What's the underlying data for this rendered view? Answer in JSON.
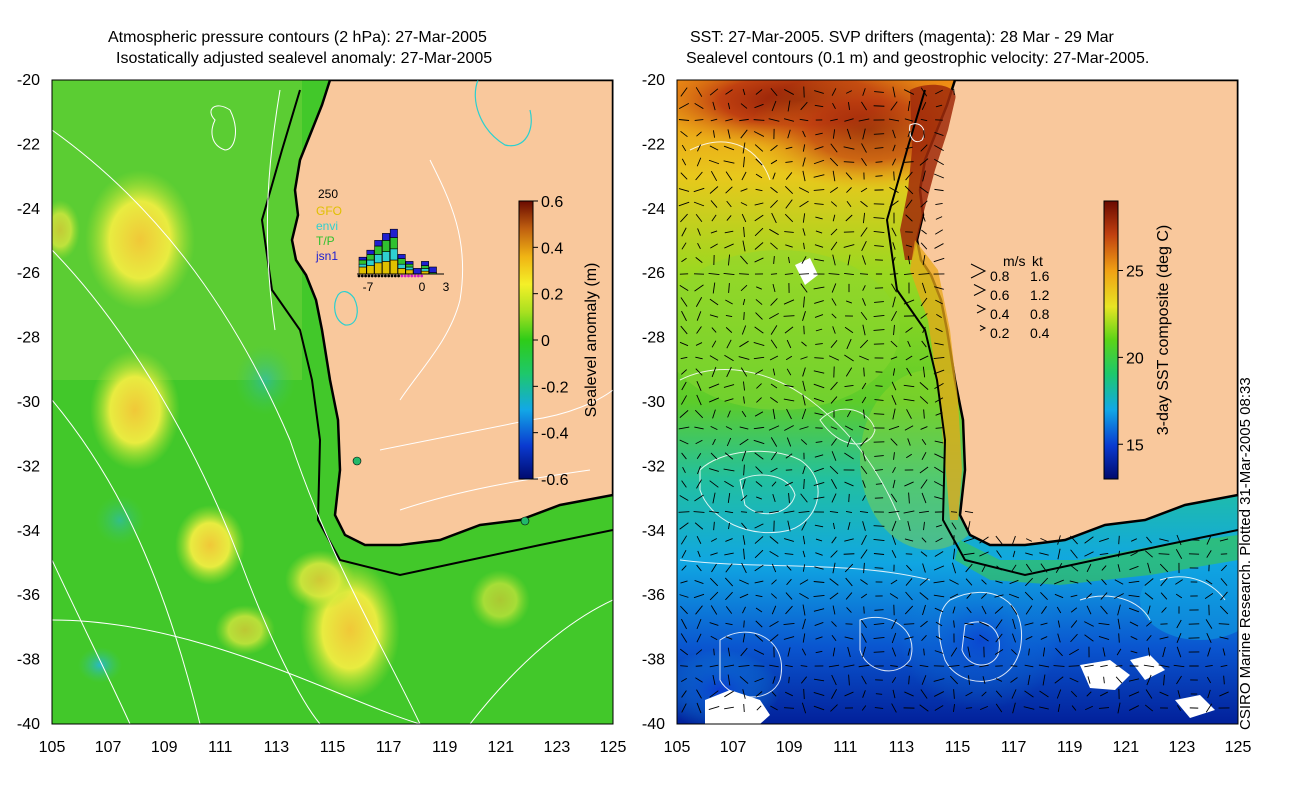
{
  "left_panel": {
    "title_line1": "Atmospheric pressure contours (2 hPa): 27-Mar-2005",
    "title_line2": "Isostatically adjusted sealevel anomaly: 27-Mar-2005",
    "colorbar": {
      "label": "Sealevel anomaly (m)",
      "ticks": [
        "0.6",
        "0.4",
        "0.2",
        "0",
        "-0.2",
        "-0.4",
        "-0.6"
      ],
      "range": [
        -0.6,
        0.6
      ]
    },
    "histogram": {
      "y_max_label": "250",
      "legend": [
        {
          "name": "GFO",
          "color": "#e0c000"
        },
        {
          "name": "envi",
          "color": "#2fd0d0"
        },
        {
          "name": "T/P",
          "color": "#30c030"
        },
        {
          "name": "jsn1",
          "color": "#2020d0"
        }
      ],
      "x_ticks": [
        "-7",
        "0",
        "3"
      ],
      "days": [
        -7,
        -6,
        -5,
        -4,
        -3,
        -2,
        -1,
        0,
        1,
        2,
        3
      ],
      "stacks": [
        [
          25,
          10,
          15,
          10
        ],
        [
          30,
          20,
          20,
          15
        ],
        [
          40,
          30,
          30,
          20
        ],
        [
          45,
          35,
          40,
          25
        ],
        [
          50,
          40,
          40,
          30
        ],
        [
          20,
          15,
          20,
          15
        ],
        [
          15,
          10,
          10,
          10
        ],
        [
          0,
          0,
          0,
          20
        ],
        [
          10,
          10,
          10,
          15
        ],
        [
          0,
          0,
          5,
          20
        ],
        [
          0,
          0,
          0,
          0
        ]
      ]
    }
  },
  "right_panel": {
    "title_line1": "SST: 27-Mar-2005. SVP drifters (magenta): 28 Mar - 29 Mar",
    "title_line2": "Sealevel contours (0.1 m) and geostrophic velocity: 27-Mar-2005.",
    "colorbar": {
      "label": "3-day SST composite (deg C)",
      "ticks": [
        "25",
        "20",
        "15"
      ],
      "range": [
        13,
        29
      ]
    },
    "velocity_key": {
      "header_ms": "m/s",
      "header_kt": "kt",
      "rows": [
        {
          "ms": "0.8",
          "kt": "1.6"
        },
        {
          "ms": "0.6",
          "kt": "1.2"
        },
        {
          "ms": "0.4",
          "kt": "0.8"
        },
        {
          "ms": "0.2",
          "kt": "0.4"
        }
      ]
    }
  },
  "axes": {
    "y_ticks": [
      "-20",
      "-22",
      "-24",
      "-26",
      "-28",
      "-30",
      "-32",
      "-34",
      "-36",
      "-38",
      "-40"
    ],
    "x_ticks": [
      "105",
      "107",
      "109",
      "111",
      "113",
      "115",
      "117",
      "119",
      "121",
      "123",
      "125"
    ],
    "lon_range": [
      105,
      125
    ],
    "lat_range": [
      -40,
      -20
    ]
  },
  "credit": "CSIRO Marine Research. Plotted 31-Mar-2005 08:33",
  "colors": {
    "land": "#f9c89c",
    "coast": "#000000",
    "contour": "#ffffff"
  }
}
